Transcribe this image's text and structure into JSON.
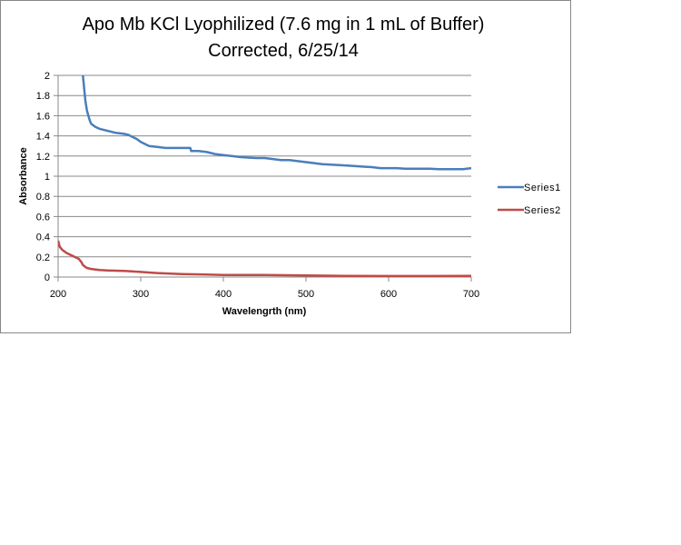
{
  "chart_data": {
    "type": "line",
    "title": [
      "Apo Mb KCl Lyophilized (7.6 mg in 1 mL of Buffer)",
      "Corrected, 6/25/14"
    ],
    "xlabel": "Wavelengrth (nm)",
    "ylabel": "Absorbance",
    "xlim": [
      200,
      700
    ],
    "ylim": [
      0,
      2
    ],
    "xticks": [
      200,
      300,
      400,
      500,
      600,
      700
    ],
    "yticks": [
      0,
      0.2,
      0.4,
      0.6,
      0.8,
      1,
      1.2,
      1.4,
      1.6,
      1.8,
      2
    ],
    "grid": "horizontal",
    "legend_position": "right",
    "series": [
      {
        "name": "Series1",
        "color": "#4a7ebb",
        "x": [
          226,
          230,
          233,
          235,
          238,
          240,
          245,
          250,
          260,
          270,
          280,
          285,
          290,
          295,
          300,
          305,
          310,
          320,
          330,
          340,
          350,
          360,
          361,
          370,
          380,
          390,
          400,
          410,
          420,
          430,
          440,
          450,
          460,
          470,
          480,
          490,
          500,
          510,
          520,
          530,
          540,
          550,
          560,
          570,
          580,
          590,
          600,
          610,
          620,
          630,
          640,
          650,
          660,
          670,
          680,
          690,
          700
        ],
        "y": [
          2.6,
          2.0,
          1.75,
          1.65,
          1.56,
          1.52,
          1.49,
          1.47,
          1.45,
          1.43,
          1.42,
          1.41,
          1.39,
          1.37,
          1.34,
          1.32,
          1.3,
          1.29,
          1.28,
          1.28,
          1.28,
          1.28,
          1.25,
          1.25,
          1.24,
          1.22,
          1.21,
          1.2,
          1.19,
          1.185,
          1.18,
          1.18,
          1.17,
          1.16,
          1.16,
          1.15,
          1.14,
          1.13,
          1.12,
          1.115,
          1.11,
          1.105,
          1.1,
          1.095,
          1.09,
          1.08,
          1.08,
          1.08,
          1.075,
          1.075,
          1.075,
          1.075,
          1.07,
          1.07,
          1.07,
          1.07,
          1.08
        ]
      },
      {
        "name": "Series2",
        "color": "#be4b48",
        "x": [
          200,
          202,
          205,
          210,
          215,
          220,
          225,
          228,
          230,
          233,
          235,
          240,
          250,
          260,
          280,
          300,
          320,
          350,
          380,
          400,
          450,
          500,
          550,
          600,
          650,
          700
        ],
        "y": [
          0.36,
          0.3,
          0.27,
          0.24,
          0.22,
          0.2,
          0.18,
          0.15,
          0.12,
          0.1,
          0.09,
          0.08,
          0.07,
          0.065,
          0.06,
          0.05,
          0.04,
          0.03,
          0.025,
          0.02,
          0.02,
          0.015,
          0.012,
          0.01,
          0.01,
          0.012
        ]
      }
    ]
  }
}
